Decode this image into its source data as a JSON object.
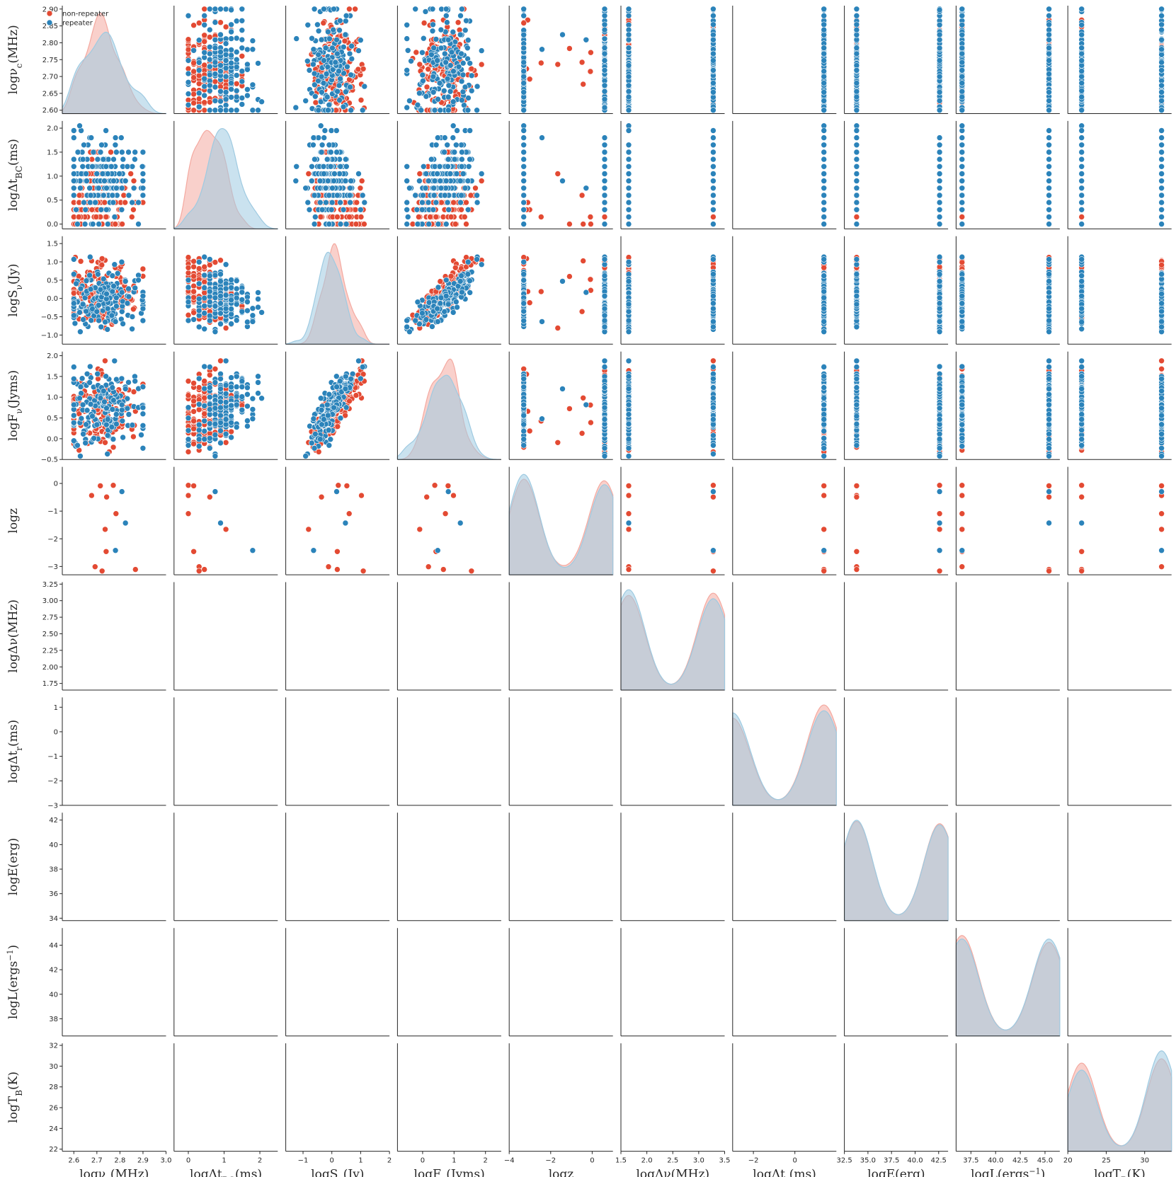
{
  "chart_data": {
    "type": "scatter",
    "kind": "pairplot",
    "diag_kind": "kde",
    "legend": {
      "placement": "top-left",
      "entries": [
        {
          "name": "non-repeater",
          "color": "#e34a33"
        },
        {
          "name": "repeater",
          "color": "#2b83ba"
        }
      ]
    },
    "series_colors": {
      "non-repeater": "#e34a33",
      "repeater": "#2b83ba"
    },
    "kde_colors": {
      "non-repeater": "#f4a9a0",
      "repeater": "#9ecae1"
    },
    "variables": [
      {
        "key": "nu",
        "base": "logν",
        "sub": "c",
        "sup": "",
        "unit": "(MHz)",
        "range": [
          2.55,
          3.0
        ],
        "y_range": [
          2.59,
          2.91
        ],
        "xticks": [
          2.6,
          2.7,
          2.8,
          2.9,
          3.0
        ],
        "xtick_labels": [
          "2.6",
          "2.7",
          "2.8",
          "2.9",
          "3.0"
        ],
        "yticks": [
          2.6,
          2.65,
          2.7,
          2.75,
          2.8,
          2.85,
          2.9
        ],
        "ytick_labels": [
          "2.60",
          "2.65",
          "2.70",
          "2.75",
          "2.80",
          "2.85",
          "2.90"
        ],
        "dist": {
          "non-repeater": {
            "mean": 2.71,
            "sd": 0.085
          },
          "repeater": {
            "mean": 2.73,
            "sd": 0.09
          }
        },
        "clip": [
          2.6,
          2.9
        ]
      },
      {
        "key": "tbc",
        "base": "logΔt",
        "sub": "BC",
        "sup": "",
        "unit": "(ms)",
        "range": [
          -0.4,
          2.5
        ],
        "y_range": [
          -0.1,
          2.15
        ],
        "xticks": [
          0,
          1,
          2
        ],
        "xtick_labels": [
          "0",
          "1",
          "2"
        ],
        "yticks": [
          0,
          0.5,
          1,
          1.5,
          2
        ],
        "ytick_labels": [
          "0.0",
          "0.5",
          "1.0",
          "1.5",
          "2.0"
        ],
        "dist": {
          "non-repeater": {
            "mean": 0.6,
            "sd": 0.4
          },
          "repeater": {
            "mean": 1.0,
            "sd": 0.45
          }
        },
        "clip": [
          0,
          2.05
        ],
        "quantize": 0.15
      },
      {
        "key": "s",
        "base": "logS",
        "sub": "ν",
        "sup": "",
        "unit": "(Jy)",
        "range": [
          -1.6,
          2.0
        ],
        "y_range": [
          -1.25,
          1.7
        ],
        "xticks": [
          -1,
          0,
          1,
          2
        ],
        "xtick_labels": [
          "−1",
          "0",
          "1",
          "2"
        ],
        "yticks": [
          -1,
          -0.5,
          0,
          0.5,
          1,
          1.5
        ],
        "ytick_labels": [
          "−1.0",
          "−0.5",
          "0.0",
          "0.5",
          "1.0",
          "1.5"
        ],
        "dist": {
          "non-repeater": {
            "mean": 0.1,
            "sd": 0.4
          },
          "repeater": {
            "mean": -0.05,
            "sd": 0.4
          }
        }
      },
      {
        "key": "f",
        "base": "logF",
        "sub": "ν",
        "sup": "",
        "unit": "(Jyms)",
        "range": [
          -0.8,
          2.5
        ],
        "y_range": [
          -0.5,
          2.1
        ],
        "xticks": [
          0,
          1,
          2
        ],
        "xtick_labels": [
          "0",
          "1",
          "2"
        ],
        "yticks": [
          -0.5,
          0,
          0.5,
          1,
          1.5,
          2
        ],
        "ytick_labels": [
          "−0.5",
          "0.0",
          "0.5",
          "1.0",
          "1.5",
          "2.0"
        ],
        "dist": {
          "non-repeater": {
            "mean": 0.65,
            "sd": 0.42
          },
          "repeater": {
            "mean": 0.7,
            "sd": 0.45
          }
        }
      },
      {
        "key": "z",
        "base": "logz",
        "sub": "",
        "sup": "",
        "unit": "",
        "range": [
          -4.0,
          1.0
        ],
        "y_range": [
          -3.3,
          0.6
        ],
        "xticks": [
          -4,
          -2,
          0
        ],
        "xtick_labels": [
          "−4",
          "−2",
          "0"
        ],
        "yticks": [
          -3,
          -2,
          -1,
          0
        ],
        "ytick_labels": [
          "−3",
          "−2",
          "−1",
          "0"
        ],
        "dist": {
          "non-repeater": {
            "mean": -0.55,
            "sd": 0.45
          },
          "repeater": {
            "mean": -0.75,
            "sd": 0.65
          }
        }
      },
      {
        "key": "dnu",
        "base": "logΔν",
        "sub": "",
        "sup": "",
        "unit": "(MHz)",
        "range": [
          1.5,
          3.5
        ],
        "y_range": [
          1.65,
          3.28
        ],
        "xticks": [
          1.5,
          2.0,
          2.5,
          3.0,
          3.5
        ],
        "xtick_labels": [
          "1.5",
          "2.0",
          "2.5",
          "3.0",
          "3.5"
        ],
        "yticks": [
          1.75,
          2.0,
          2.25,
          2.5,
          2.75,
          3.0,
          3.25
        ],
        "ytick_labels": [
          "1.75",
          "2.00",
          "2.25",
          "2.50",
          "2.75",
          "3.00",
          "3.25"
        ],
        "dist": {
          "non-repeater": {
            "mean": 2.65,
            "sd": 0.22
          },
          "repeater": {
            "mean": 2.35,
            "sd": 0.28
          }
        }
      },
      {
        "key": "tr",
        "base": "logΔt",
        "sub": "r",
        "sup": "",
        "unit": "(ms)",
        "range": [
          -3.0,
          2.0
        ],
        "y_range": [
          -3.0,
          1.4
        ],
        "xticks": [
          -2,
          0
        ],
        "xtick_labels": [
          "−2",
          "0"
        ],
        "yticks": [
          -3,
          -2,
          -1,
          0,
          1
        ],
        "ytick_labels": [
          "−3",
          "−2",
          "−1",
          "0",
          "1"
        ],
        "dist": {
          "non-repeater": {
            "mean": -0.15,
            "sd": 0.35
          },
          "repeater": {
            "mean": 0.3,
            "sd": 0.45
          }
        }
      },
      {
        "key": "e",
        "base": "logE",
        "sub": "",
        "sup": "",
        "unit": "(erg)",
        "range": [
          32.5,
          43.5
        ],
        "y_range": [
          33.8,
          42.6
        ],
        "xticks": [
          32.5,
          35.0,
          37.5,
          40.0,
          42.5
        ],
        "xtick_labels": [
          "32.5",
          "35.0",
          "37.5",
          "40.0",
          "42.5"
        ],
        "yticks": [
          34,
          36,
          38,
          40,
          42
        ],
        "ytick_labels": [
          "34",
          "36",
          "38",
          "40",
          "42"
        ],
        "dist": {
          "non-repeater": {
            "mean": 40.0,
            "sd": 1.0
          },
          "repeater": {
            "mean": 39.3,
            "sd": 1.4
          }
        }
      },
      {
        "key": "l",
        "base": "logL",
        "sub": "",
        "sup": "−1",
        "unit": "(ergs",
        "range": [
          36.0,
          46.5
        ],
        "y_range": [
          36.6,
          45.4
        ],
        "xticks": [
          37.5,
          40.0,
          42.5,
          45.0
        ],
        "xtick_labels": [
          "37.5",
          "40.0",
          "42.5",
          "45.0"
        ],
        "yticks": [
          38,
          40,
          42,
          44
        ],
        "ytick_labels": [
          "38",
          "40",
          "42",
          "44"
        ],
        "dist": {
          "non-repeater": {
            "mean": 42.6,
            "sd": 0.9
          },
          "repeater": {
            "mean": 41.9,
            "sd": 1.3
          }
        }
      },
      {
        "key": "tb",
        "base": "logT",
        "sub": "B",
        "sup": "",
        "unit": "(K)",
        "range": [
          20.0,
          33.5
        ],
        "y_range": [
          21.8,
          32.2
        ],
        "xticks": [
          20,
          25,
          30
        ],
        "xtick_labels": [
          "20",
          "25",
          "30"
        ],
        "yticks": [
          22,
          24,
          26,
          28,
          30,
          32
        ],
        "ytick_labels": [
          "22",
          "24",
          "26",
          "28",
          "30",
          "32"
        ],
        "dist": {
          "non-repeater": {
            "mean": 29.0,
            "sd": 1.1
          },
          "repeater": {
            "mean": 27.3,
            "sd": 1.5
          }
        }
      }
    ],
    "correlation": [
      [
        1.0,
        0.0,
        0.0,
        0.0,
        0.0,
        0.3,
        -0.1,
        0.0,
        0.0,
        0.0
      ],
      [
        0.0,
        1.0,
        -0.3,
        0.3,
        0.1,
        0.0,
        0.6,
        0.1,
        -0.1,
        -0.65
      ],
      [
        0.0,
        -0.3,
        1.0,
        0.85,
        0.0,
        0.25,
        -0.3,
        0.25,
        0.3,
        0.45
      ],
      [
        0.0,
        0.3,
        0.85,
        1.0,
        0.0,
        0.2,
        0.2,
        0.35,
        0.3,
        0.1
      ],
      [
        0.0,
        0.1,
        0.0,
        0.0,
        1.0,
        0.6,
        0.0,
        0.95,
        0.95,
        0.7
      ],
      [
        0.3,
        0.0,
        0.25,
        0.2,
        0.6,
        1.0,
        -0.3,
        0.6,
        0.6,
        0.55
      ],
      [
        -0.1,
        0.6,
        -0.3,
        0.2,
        0.0,
        -0.3,
        1.0,
        -0.1,
        -0.25,
        -0.65
      ],
      [
        0.0,
        0.1,
        0.25,
        0.35,
        0.95,
        0.6,
        -0.1,
        1.0,
        0.98,
        0.8
      ],
      [
        0.0,
        -0.1,
        0.3,
        0.3,
        0.95,
        0.6,
        -0.25,
        0.98,
        1.0,
        0.8
      ],
      [
        0.0,
        -0.65,
        0.45,
        0.1,
        0.7,
        0.55,
        -0.65,
        0.8,
        0.8,
        1.0
      ]
    ]
  }
}
